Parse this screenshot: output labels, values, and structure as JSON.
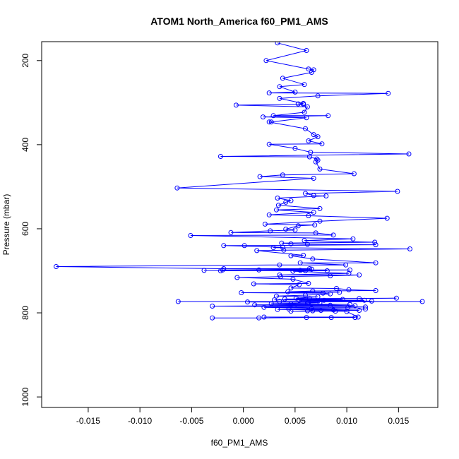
{
  "chart_data": {
    "type": "line",
    "title": "ATOM1 North_America f60_PM1_AMS",
    "xlabel": "f60_PM1_AMS",
    "ylabel": "Pressure (mbar)",
    "xlim": [
      -0.0195,
      0.0188
    ],
    "ylim": [
      1025,
      155
    ],
    "y_inverted": true,
    "xticks": [
      -0.015,
      -0.01,
      -0.005,
      0.0,
      0.005,
      0.01,
      0.015
    ],
    "xtick_labels": [
      "-0.015",
      "-0.010",
      "-0.005",
      "0.000",
      "0.005",
      "0.010",
      "0.015"
    ],
    "yticks": [
      200,
      400,
      600,
      800,
      1000
    ],
    "ytick_labels": [
      "200",
      "400",
      "600",
      "800",
      "1000"
    ],
    "series": [
      {
        "name": "f60_PM1_AMS",
        "color": "#0000ff",
        "marker": "open-circle",
        "points": [
          [
            0.0033,
            158
          ],
          [
            0.0061,
            176
          ],
          [
            0.0022,
            200
          ],
          [
            0.0063,
            220
          ],
          [
            0.0068,
            222
          ],
          [
            0.0066,
            228
          ],
          [
            0.0038,
            242
          ],
          [
            0.0059,
            257
          ],
          [
            0.0035,
            262
          ],
          [
            0.005,
            275
          ],
          [
            0.0025,
            277
          ],
          [
            0.014,
            278
          ],
          [
            0.0072,
            284
          ],
          [
            0.0035,
            290
          ],
          [
            0.0058,
            302
          ],
          [
            0.0053,
            303
          ],
          [
            0.0058,
            304
          ],
          [
            -0.0007,
            306
          ],
          [
            0.0062,
            310
          ],
          [
            0.0059,
            323
          ],
          [
            0.0029,
            331
          ],
          [
            0.0082,
            331
          ],
          [
            0.0019,
            334
          ],
          [
            0.0061,
            336
          ],
          [
            0.0027,
            346
          ],
          [
            0.0025,
            346
          ],
          [
            0.006,
            362
          ],
          [
            0.0068,
            376
          ],
          [
            0.0072,
            381
          ],
          [
            0.0063,
            391
          ],
          [
            0.0076,
            398
          ],
          [
            0.0025,
            399
          ],
          [
            0.005,
            409
          ],
          [
            0.0065,
            418
          ],
          [
            0.016,
            422
          ],
          [
            -0.0022,
            428
          ],
          [
            0.0064,
            429
          ],
          [
            0.0071,
            434
          ],
          [
            0.0072,
            437
          ],
          [
            0.007,
            441
          ],
          [
            0.0074,
            458
          ],
          [
            0.0107,
            469
          ],
          [
            0.0038,
            472
          ],
          [
            0.0016,
            476
          ],
          [
            0.0068,
            480
          ],
          [
            -0.0064,
            503
          ],
          [
            0.0149,
            511
          ],
          [
            0.006,
            516
          ],
          [
            0.0068,
            521
          ],
          [
            0.008,
            522
          ],
          [
            0.0033,
            527
          ],
          [
            0.0046,
            533
          ],
          [
            0.0041,
            537
          ],
          [
            0.0034,
            544
          ],
          [
            0.0074,
            552
          ],
          [
            0.0032,
            555
          ],
          [
            0.0068,
            561
          ],
          [
            0.0025,
            567
          ],
          [
            0.0063,
            569
          ],
          [
            0.0139,
            575
          ],
          [
            0.0074,
            582
          ],
          [
            0.0021,
            589
          ],
          [
            0.0069,
            591
          ],
          [
            0.0053,
            593
          ],
          [
            0.0041,
            601
          ],
          [
            0.005,
            603
          ],
          [
            0.0026,
            605
          ],
          [
            -0.0012,
            609
          ],
          [
            0.007,
            610
          ],
          [
            0.0087,
            615
          ],
          [
            -0.0051,
            616
          ],
          [
            0.0106,
            624
          ],
          [
            0.0059,
            628
          ],
          [
            0.0127,
            632
          ],
          [
            0.0037,
            634
          ],
          [
            0.0046,
            636
          ],
          [
            0.0062,
            637
          ],
          [
            0.0128,
            638
          ],
          [
            0.0001,
            640
          ],
          [
            -0.0019,
            640
          ],
          [
            0.0038,
            644
          ],
          [
            0.0029,
            645
          ],
          [
            0.0161,
            648
          ],
          [
            0.0039,
            651
          ],
          [
            0.0013,
            652
          ],
          [
            0.0058,
            663
          ],
          [
            0.0046,
            664
          ],
          [
            0.0067,
            672
          ],
          [
            0.0128,
            681
          ],
          [
            0.0055,
            681
          ],
          [
            0.0099,
            686
          ],
          [
            0.0035,
            686
          ],
          [
            -0.0181,
            690
          ],
          [
            -0.0019,
            695
          ],
          [
            0.0064,
            695
          ],
          [
            0.0066,
            696
          ],
          [
            -0.002,
            698
          ],
          [
            -0.0022,
            700
          ],
          [
            0.0103,
            698
          ],
          [
            0.0015,
            698
          ],
          [
            0.0055,
            699
          ],
          [
            -0.0038,
            699
          ],
          [
            0.0081,
            700
          ],
          [
            0.006,
            700
          ],
          [
            0.0048,
            701
          ],
          [
            0.0102,
            706
          ],
          [
            0.0035,
            710
          ],
          [
            0.0112,
            710
          ],
          [
            0.0084,
            712
          ],
          [
            0.0036,
            714
          ],
          [
            -0.0006,
            716
          ],
          [
            0.0048,
            720
          ],
          [
            0.0063,
            730
          ],
          [
            0.001,
            731
          ],
          [
            0.0054,
            733
          ],
          [
            0.0046,
            741
          ],
          [
            0.009,
            742
          ],
          [
            0.0102,
            745
          ],
          [
            0.0128,
            747
          ],
          [
            0.0067,
            748
          ],
          [
            0.0043,
            750
          ],
          [
            0.0093,
            751
          ],
          [
            -0.0002,
            752
          ],
          [
            0.0077,
            753
          ],
          [
            0.0084,
            755
          ],
          [
            0.006,
            758
          ],
          [
            0.0032,
            760
          ],
          [
            0.0072,
            762
          ],
          [
            0.0051,
            765
          ],
          [
            0.0064,
            766
          ],
          [
            0.0148,
            765
          ],
          [
            0.0112,
            766
          ],
          [
            0.004,
            767
          ],
          [
            0.0096,
            768
          ],
          [
            0.003,
            769
          ],
          [
            0.0117,
            770
          ],
          [
            0.0078,
            770
          ],
          [
            0.0054,
            771
          ],
          [
            0.0124,
            772
          ],
          [
            0.0035,
            773
          ],
          [
            -0.0063,
            773
          ],
          [
            0.0173,
            773
          ],
          [
            0.0004,
            774
          ],
          [
            0.0063,
            775
          ],
          [
            0.0074,
            776
          ],
          [
            0.0062,
            777
          ],
          [
            0.0027,
            778
          ],
          [
            0.0046,
            779
          ],
          [
            0.0103,
            780
          ],
          [
            0.0011,
            781
          ],
          [
            0.0084,
            782
          ],
          [
            0.0108,
            783
          ],
          [
            0.0049,
            783
          ],
          [
            -0.003,
            784
          ],
          [
            0.0118,
            786
          ],
          [
            0.0101,
            787
          ],
          [
            0.002,
            787
          ],
          [
            0.0066,
            789
          ],
          [
            0.0118,
            791
          ],
          [
            0.0044,
            791
          ],
          [
            0.0033,
            792
          ],
          [
            0.0087,
            793
          ],
          [
            0.0112,
            794
          ],
          [
            0.0075,
            794
          ],
          [
            0.0067,
            795
          ],
          [
            0.0062,
            795
          ],
          [
            0.0046,
            796
          ],
          [
            0.0089,
            796
          ],
          [
            0.01,
            797
          ],
          [
            0.0111,
            810
          ],
          [
            0.002,
            810
          ],
          [
            0.0085,
            811
          ],
          [
            0.0108,
            811
          ],
          [
            0.0061,
            811
          ],
          [
            0.0015,
            812
          ],
          [
            -0.003,
            812
          ]
        ]
      }
    ]
  }
}
